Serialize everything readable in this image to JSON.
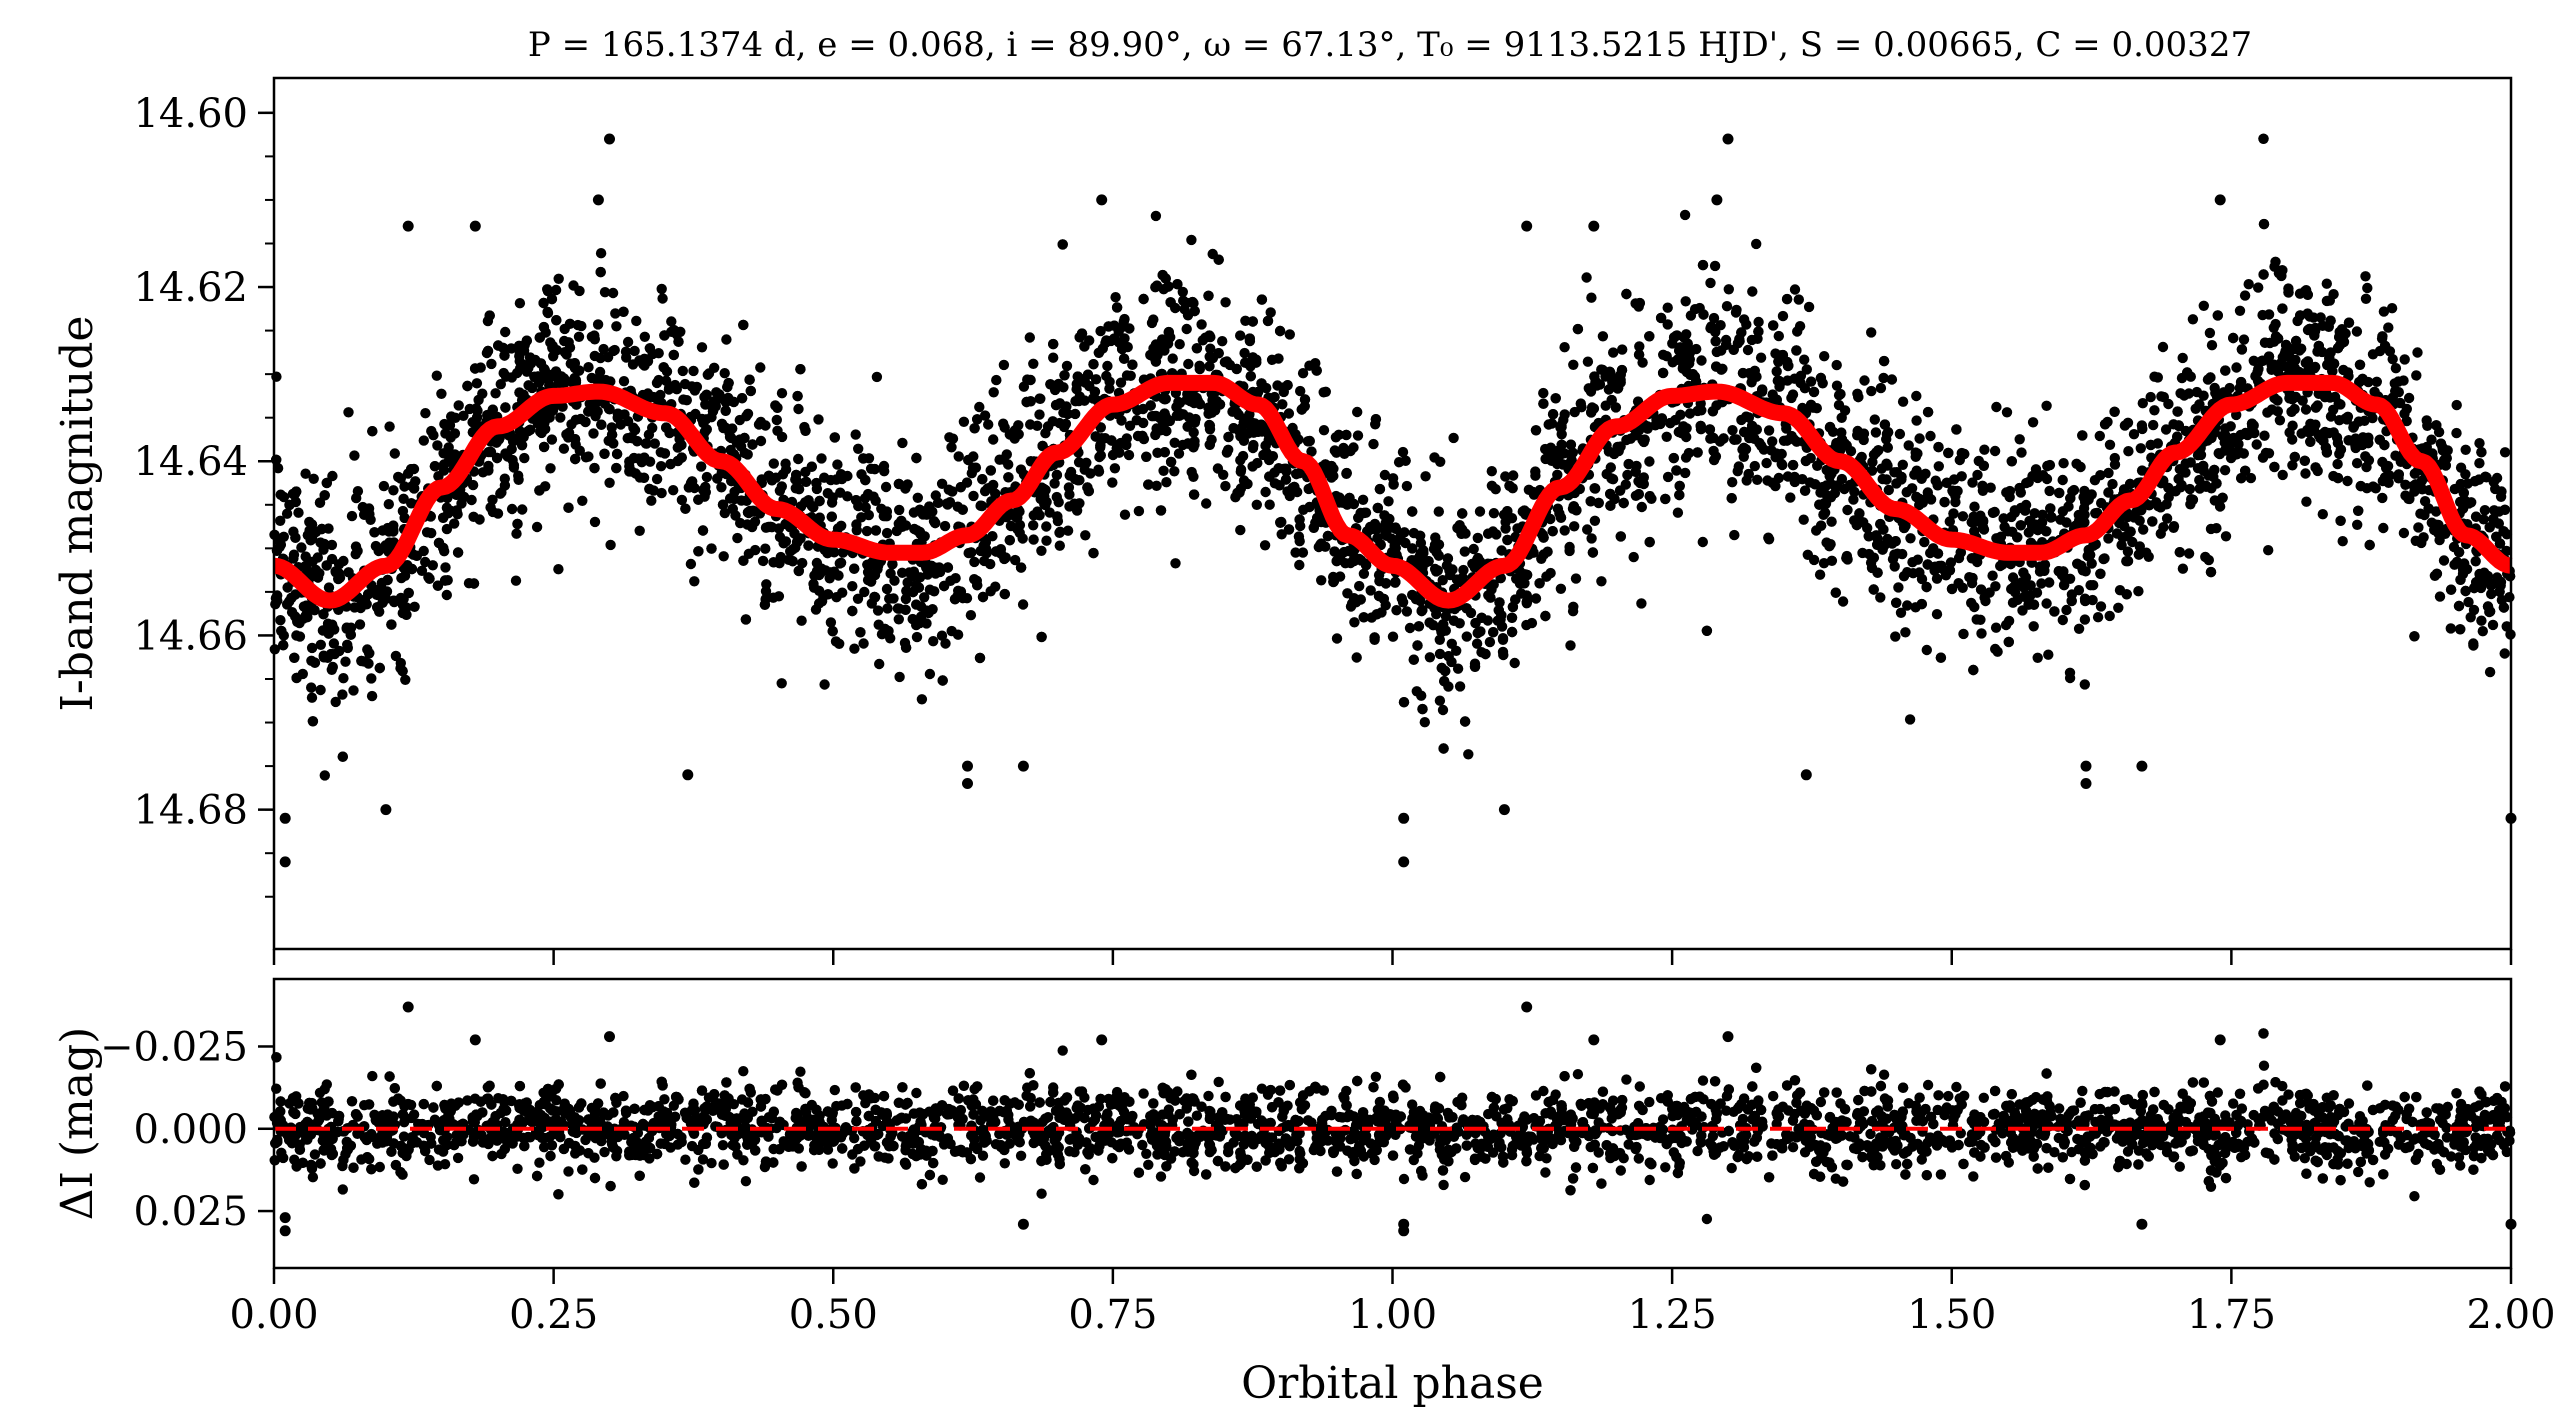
{
  "chart_data": [
    {
      "id": "main",
      "type": "scatter",
      "title": "P = 165.1374 d, e = 0.068, i = 89.90°, ω = 67.13°, T₀ = 9113.5215 HJD', S = 0.00665, C = 0.00327",
      "xlabel": "",
      "ylabel": "I-band magnitude",
      "xlim": [
        0.0,
        2.0
      ],
      "ylim": [
        14.696,
        14.596
      ],
      "y_inverted": true,
      "yticks": [
        "14.60",
        "14.62",
        "14.64",
        "14.66",
        "14.68"
      ],
      "ytick_values": [
        14.6,
        14.62,
        14.64,
        14.66,
        14.68
      ],
      "xticks_unlabeled": [
        0.0,
        0.25,
        0.5,
        0.75,
        1.0,
        1.25,
        1.5,
        1.75,
        2.0
      ],
      "grid": false,
      "series": [
        {
          "kind": "scatter",
          "color": "#000000",
          "description_points": "dense photometric observations folded on two orbital cycles",
          "points": [
            [
              0.01,
              14.686
            ],
            [
              0.01,
              14.681
            ],
            [
              0.1,
              14.68
            ],
            [
              0.12,
              14.613
            ],
            [
              0.18,
              14.613
            ],
            [
              0.3,
              14.603
            ],
            [
              0.29,
              14.61
            ],
            [
              0.37,
              14.676
            ],
            [
              0.62,
              14.677
            ],
            [
              0.62,
              14.675
            ],
            [
              0.67,
              14.675
            ],
            [
              0.74,
              14.61
            ],
            [
              1.01,
              14.686
            ],
            [
              1.01,
              14.681
            ],
            [
              1.1,
              14.68
            ],
            [
              1.12,
              14.613
            ],
            [
              1.18,
              14.613
            ],
            [
              1.3,
              14.603
            ],
            [
              1.29,
              14.61
            ],
            [
              1.37,
              14.676
            ],
            [
              1.62,
              14.677
            ],
            [
              1.62,
              14.675
            ],
            [
              1.67,
              14.675
            ],
            [
              1.74,
              14.61
            ],
            [
              2.0,
              14.681
            ]
          ]
        },
        {
          "kind": "line",
          "name": "",
          "color": "#ff0000",
          "x": [
            0.0,
            0.05,
            0.1,
            0.15,
            0.2,
            0.25,
            0.29,
            0.35,
            0.4,
            0.45,
            0.5,
            0.55,
            0.58,
            0.62,
            0.66,
            0.7,
            0.75,
            0.8,
            0.84,
            0.88,
            0.92,
            0.96,
            1.0,
            1.05,
            1.1,
            1.15,
            1.2,
            1.25,
            1.29,
            1.35,
            1.4,
            1.45,
            1.5,
            1.55,
            1.58,
            1.62,
            1.66,
            1.7,
            1.75,
            1.8,
            1.84,
            1.88,
            1.92,
            1.96,
            2.0
          ],
          "y": [
            14.652,
            14.656,
            14.652,
            14.643,
            14.636,
            14.6325,
            14.632,
            14.6345,
            14.64,
            14.6455,
            14.649,
            14.6505,
            14.6505,
            14.6485,
            14.6445,
            14.639,
            14.6335,
            14.631,
            14.631,
            14.6335,
            14.64,
            14.6485,
            14.652,
            14.656,
            14.652,
            14.643,
            14.636,
            14.6325,
            14.632,
            14.6345,
            14.64,
            14.6455,
            14.649,
            14.6505,
            14.6505,
            14.6485,
            14.6445,
            14.639,
            14.6335,
            14.631,
            14.631,
            14.6335,
            14.64,
            14.6485,
            14.652
          ]
        }
      ]
    },
    {
      "id": "residuals",
      "type": "scatter",
      "xlabel": "Orbital phase",
      "ylabel": "ΔI (mag)",
      "xlim": [
        0.0,
        2.0
      ],
      "ylim": [
        0.0423,
        -0.0455
      ],
      "y_inverted": true,
      "yticks": [
        "−0.025",
        "0.000",
        "0.025"
      ],
      "ytick_values": [
        -0.025,
        0.0,
        0.025
      ],
      "xticks": [
        "0.00",
        "0.25",
        "0.50",
        "0.75",
        "1.00",
        "1.25",
        "1.50",
        "1.75",
        "2.00"
      ],
      "xtick_values": [
        0.0,
        0.25,
        0.5,
        0.75,
        1.0,
        1.25,
        1.5,
        1.75,
        2.0
      ],
      "grid": false,
      "series": [
        {
          "kind": "scatter",
          "color": "#000000",
          "points": [
            [
              0.12,
              -0.037
            ],
            [
              1.12,
              -0.037
            ],
            [
              0.18,
              -0.027
            ],
            [
              0.3,
              -0.028
            ],
            [
              0.74,
              -0.027
            ],
            [
              1.18,
              -0.027
            ],
            [
              1.3,
              -0.028
            ],
            [
              1.74,
              -0.027
            ],
            [
              0.01,
              0.031
            ],
            [
              1.01,
              0.031
            ],
            [
              0.01,
              0.027
            ],
            [
              1.01,
              0.029
            ],
            [
              0.67,
              0.029
            ],
            [
              1.67,
              0.029
            ],
            [
              2.0,
              0.029
            ]
          ]
        },
        {
          "kind": "hline",
          "y": 0.0,
          "color": "#ff0000",
          "style": "dashed"
        }
      ]
    }
  ],
  "colors": {
    "points": "#000000",
    "model": "#ff0000",
    "axes": "#000000",
    "background": "#ffffff"
  }
}
